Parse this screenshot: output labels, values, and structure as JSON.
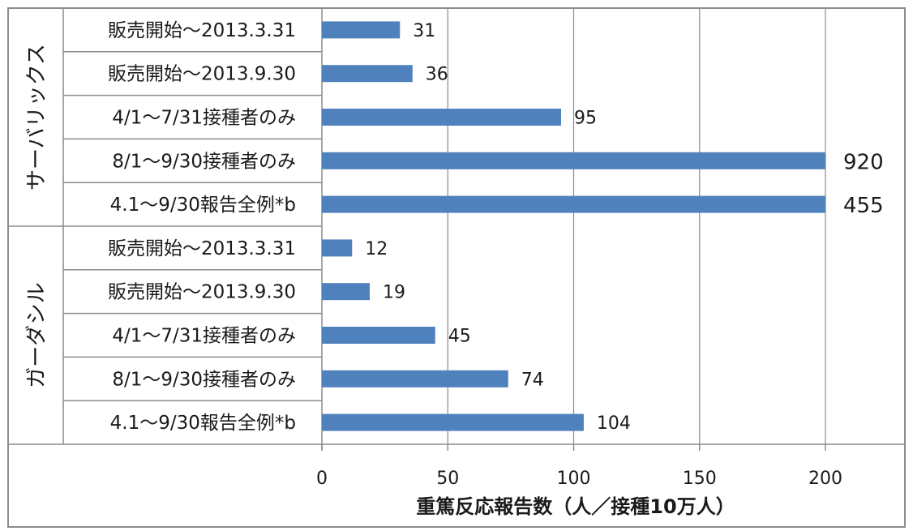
{
  "chart_data": {
    "type": "bar",
    "orientation": "horizontal",
    "groups": [
      {
        "name": "サーバリックス",
        "categories": [
          "販売開始〜2013.3.31",
          "販売開始〜2013.9.30",
          "4/1〜7/31接種者のみ",
          "8/1〜9/30接種者のみ",
          "4.1〜9/30報告全例*b"
        ],
        "values": [
          31,
          36,
          95,
          920,
          455
        ],
        "value_labels": [
          "31",
          "36",
          "95",
          "920",
          "455"
        ]
      },
      {
        "name": "ガーダシル",
        "categories": [
          "販売開始〜2013.3.31",
          "販売開始〜2013.9.30",
          "4/1〜7/31接種者のみ",
          "8/1〜9/30接種者のみ",
          "4.1〜9/30報告全例*b"
        ],
        "values": [
          12,
          19,
          45,
          74,
          104
        ],
        "value_labels": [
          "12",
          "19",
          "45",
          "74",
          "104"
        ]
      }
    ],
    "xlim": [
      0,
      200
    ],
    "xticks": [
      "0",
      "50",
      "100",
      "150",
      "200"
    ],
    "xlabel": "重篤反応報告数（人／接種10万人）",
    "grid": true,
    "bar_color": "#4f81bd"
  }
}
